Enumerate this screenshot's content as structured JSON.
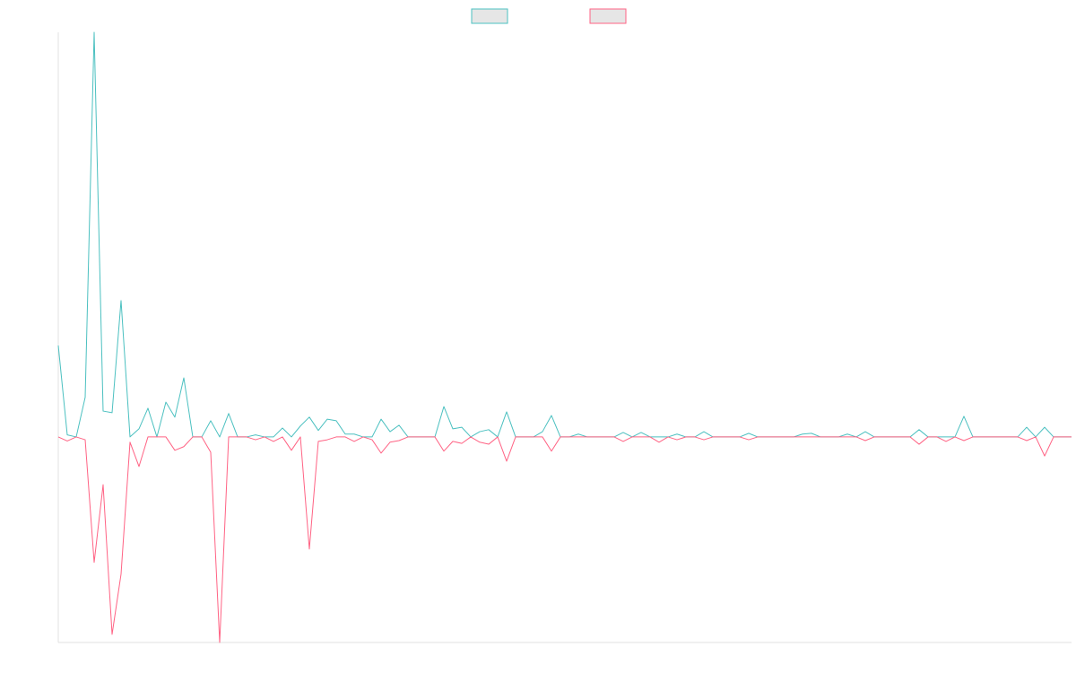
{
  "chart_data": {
    "type": "line",
    "legend": "top",
    "categories": [
      null,
      null,
      null,
      null,
      null,
      null,
      null,
      null,
      null,
      null,
      null,
      null,
      null,
      null,
      null,
      null,
      null,
      null,
      null,
      null,
      null,
      null,
      null,
      null,
      null,
      null,
      null,
      null,
      null,
      null,
      null,
      null,
      null,
      null,
      null,
      null,
      null,
      null,
      null,
      null,
      null,
      null,
      null,
      null,
      null,
      null,
      null,
      null,
      null,
      null,
      null,
      null,
      null,
      null,
      null,
      null,
      null,
      null,
      null,
      null,
      null,
      null,
      null,
      null,
      null,
      null,
      null,
      null,
      null,
      null,
      null,
      null,
      null,
      null,
      null,
      null,
      null,
      null,
      null,
      null,
      null,
      null,
      null,
      null,
      null,
      null,
      null,
      null,
      null,
      null,
      null,
      null,
      null,
      null,
      null,
      null,
      null,
      null,
      null,
      null,
      null,
      null,
      null,
      null,
      null,
      null,
      null,
      null,
      null,
      null,
      null,
      null,
      null,
      null
    ],
    "ylim": [
      -50.8,
      100
    ],
    "series": [
      {
        "color": "#4bc0c0",
        "values": [
          22.6,
          0.5,
          0,
          9.8,
          100,
          6.4,
          6,
          33.7,
          0,
          2,
          7.1,
          0,
          8.6,
          4.9,
          14.6,
          0,
          0,
          4,
          0,
          5.8,
          0,
          0,
          0.5,
          0,
          0,
          2.2,
          0,
          2.7,
          4.9,
          1.6,
          4.4,
          4,
          0.7,
          0.7,
          0,
          0,
          4.4,
          1.3,
          2.9,
          0,
          0,
          0,
          0,
          7.5,
          2,
          2.4,
          0,
          1.3,
          1.8,
          0,
          6.2,
          0,
          0,
          0,
          1.3,
          5.3,
          0,
          0,
          0.7,
          0,
          0,
          0,
          0,
          1.1,
          0,
          1.1,
          0,
          0,
          0,
          0.7,
          0,
          0,
          1.3,
          0,
          0,
          0,
          0,
          0.9,
          0,
          0,
          0,
          0,
          0,
          0.7,
          0.9,
          0,
          0,
          0,
          0.7,
          0,
          1.3,
          0,
          0,
          0,
          0,
          0,
          1.8,
          0,
          0,
          0,
          0,
          5.1,
          0,
          0,
          0,
          0,
          0,
          0,
          2.4,
          0,
          2.4,
          0,
          0,
          0
        ]
      },
      {
        "color": "#ff6384",
        "values": [
          0,
          -1,
          0,
          -0.7,
          -31,
          -11.8,
          -48.8,
          -33.9,
          -1.3,
          -7.3,
          0,
          0,
          0,
          -3.3,
          -2.4,
          0,
          0,
          -3.8,
          -50.8,
          0,
          0,
          0,
          -0.7,
          0,
          -1.1,
          0,
          -3.3,
          0,
          -27.7,
          -1.1,
          -0.7,
          0,
          0,
          -1.1,
          0,
          -0.7,
          -4,
          -1.3,
          -0.9,
          0,
          0,
          0,
          0,
          -3.5,
          -1.1,
          -1.6,
          0,
          -1.3,
          -1.8,
          0,
          -6,
          0,
          0,
          0,
          0,
          -3.5,
          0,
          0,
          0,
          0,
          0,
          0,
          0,
          -1.1,
          0,
          0,
          0,
          -1.3,
          0,
          -0.7,
          0,
          0,
          -0.7,
          0,
          0,
          0,
          0,
          -0.7,
          0,
          0,
          0,
          0,
          0,
          0,
          0,
          0,
          0,
          0,
          0,
          0,
          -0.9,
          0,
          0,
          0,
          0,
          0,
          -1.8,
          0,
          0,
          -1.1,
          0,
          -0.9,
          0,
          0,
          0,
          0,
          0,
          0,
          -0.9,
          0,
          -4.7,
          0,
          0,
          0
        ]
      }
    ]
  }
}
